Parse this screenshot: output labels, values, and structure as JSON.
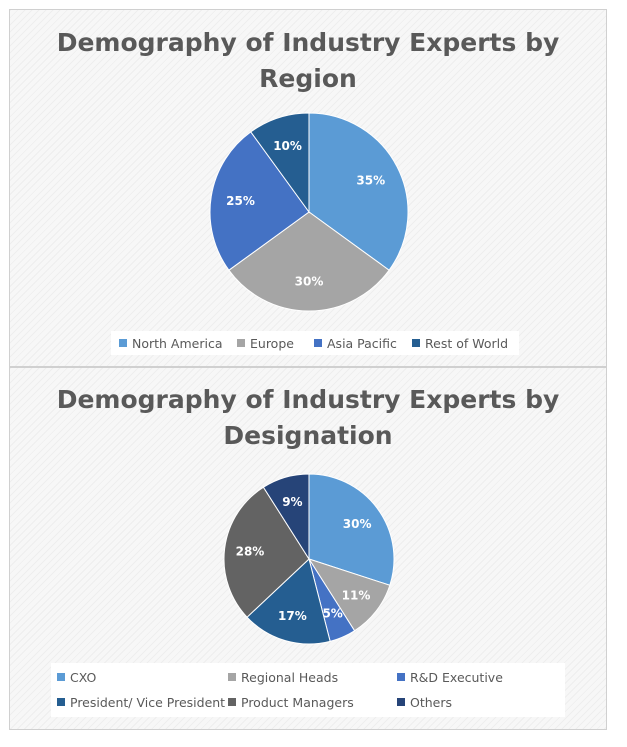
{
  "chart_data": [
    {
      "type": "pie",
      "title_lines": [
        "Demography of Industry Experts by",
        "Region"
      ],
      "categories": [
        "North America",
        "Europe",
        "Asia Pacific",
        "Rest of World"
      ],
      "values": [
        35,
        30,
        25,
        10
      ],
      "labels": [
        "35%",
        "30%",
        "25%",
        "10%"
      ],
      "colors": [
        "#5b9bd5",
        "#a5a5a5",
        "#4472c4",
        "#255e91"
      ],
      "legend_position": "bottom"
    },
    {
      "type": "pie",
      "title_lines": [
        "Demography of Industry Experts by",
        "Designation"
      ],
      "categories": [
        "CXO",
        "Regional Heads",
        "R&D Executive",
        "President/ Vice President",
        "Product Managers",
        "Others"
      ],
      "values": [
        30,
        11,
        5,
        17,
        28,
        9
      ],
      "labels": [
        "30%",
        "11%",
        "5%",
        "17%",
        "28%",
        "9%"
      ],
      "colors": [
        "#5b9bd5",
        "#a5a5a5",
        "#4472c4",
        "#255e91",
        "#636363",
        "#264478"
      ],
      "legend_position": "bottom"
    }
  ]
}
